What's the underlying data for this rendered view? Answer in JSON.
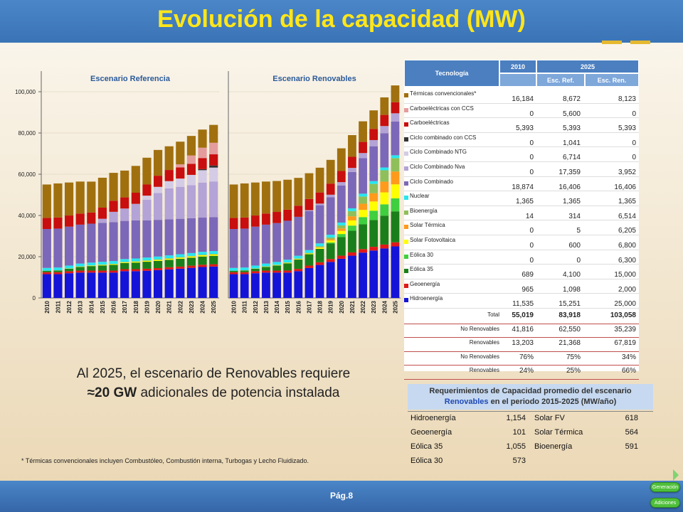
{
  "title": "Evolución de la capacidad (MW)",
  "footer": {
    "page": "Pág.8",
    "nav_top": "Generación",
    "nav_bottom": "Adiciones"
  },
  "message": {
    "line1": "Al 2025, el escenario de Renovables requiere",
    "line2_bold": "≈20 GW",
    "line2_rest": " adicionales de potencia instalada"
  },
  "footnote": "*  Térmicas convencionales incluyen Combustóleo, Combustión interna, Turbogas y Lecho Fluidizado.",
  "colors": {
    "Hidroenergía": "#1414d8",
    "Geoenergía": "#e01818",
    "Eólica 35": "#1a7f1a",
    "Eólica 30": "#3fcf3f",
    "Solar Fotovoltaica": "#ffff00",
    "Solar Térmica": "#ff9a1a",
    "Bioenergía": "#8fbf5a",
    "Nuclear": "#28e6f0",
    "Ciclo Combinado": "#7c68b8",
    "Ciclo Combinado Nva": "#b3a3d6",
    "Ciclo Combinado NTG": "#d4cce6",
    "Ciclo combinado con CCS": "#333333",
    "Carboeléctricas": "#c80e0e",
    "Carboeléctricas con CCS": "#e59c9c",
    "Térmicas convencionales*": "#a0700f"
  },
  "chart_data": [
    {
      "type": "bar",
      "stacked": true,
      "title": "Escenario Referencia",
      "categories": [
        "2010",
        "2011",
        "2012",
        "2013",
        "2014",
        "2015",
        "2016",
        "2017",
        "2018",
        "2019",
        "2020",
        "2021",
        "2022",
        "2023",
        "2024",
        "2025"
      ],
      "yticks": [
        "0",
        "20,000",
        "40,000",
        "60,000",
        "80,000",
        "100,000"
      ],
      "ylim": [
        0,
        110000
      ],
      "series": [
        {
          "name": "Hidroenergía",
          "values": [
            11535,
            11535,
            12000,
            12300,
            12300,
            12300,
            12300,
            13000,
            13000,
            13200,
            13500,
            13900,
            14200,
            14600,
            15000,
            15251
          ]
        },
        {
          "name": "Geoenergía",
          "values": [
            965,
            965,
            965,
            965,
            965,
            965,
            965,
            965,
            965,
            965,
            965,
            1000,
            1000,
            1050,
            1098,
            1098
          ]
        },
        {
          "name": "Eólica 35",
          "values": [
            689,
            800,
            1200,
            1800,
            2200,
            2500,
            2800,
            3000,
            3200,
            3400,
            3500,
            3600,
            3800,
            3900,
            4000,
            4100
          ]
        },
        {
          "name": "Eólica 30",
          "values": [
            0,
            0,
            0,
            0,
            0,
            0,
            0,
            0,
            0,
            0,
            0,
            0,
            0,
            0,
            0,
            0
          ]
        },
        {
          "name": "Solar Fotovoltaica",
          "values": [
            0,
            50,
            100,
            150,
            200,
            250,
            300,
            350,
            400,
            450,
            500,
            520,
            550,
            570,
            590,
            600
          ]
        },
        {
          "name": "Solar Térmica",
          "values": [
            0,
            0,
            0,
            0,
            0,
            0,
            0,
            0,
            0,
            0,
            0,
            0,
            0,
            5,
            5,
            5
          ]
        },
        {
          "name": "Bioenergía",
          "values": [
            14,
            50,
            80,
            100,
            120,
            150,
            170,
            190,
            210,
            230,
            250,
            270,
            280,
            290,
            300,
            314
          ]
        },
        {
          "name": "Nuclear",
          "values": [
            1365,
            1365,
            1365,
            1365,
            1365,
            1365,
            1365,
            1365,
            1365,
            1365,
            1365,
            1365,
            1365,
            1365,
            1365,
            1365
          ]
        },
        {
          "name": "Ciclo Combinado",
          "values": [
            18874,
            18874,
            18874,
            18874,
            18874,
            18874,
            18874,
            18500,
            18500,
            18000,
            17800,
            17500,
            17200,
            16900,
            16600,
            16406
          ]
        },
        {
          "name": "Ciclo Combinado Nva",
          "values": [
            0,
            0,
            0,
            0,
            0,
            2000,
            5000,
            6000,
            8000,
            10000,
            13000,
            15000,
            15500,
            16000,
            17000,
            17359
          ]
        },
        {
          "name": "Ciclo Combinado NTG",
          "values": [
            0,
            0,
            0,
            0,
            0,
            0,
            0,
            0,
            0,
            2000,
            3000,
            3500,
            4000,
            5000,
            6000,
            6714
          ]
        },
        {
          "name": "Ciclo combinado con CCS",
          "values": [
            0,
            0,
            0,
            0,
            0,
            0,
            0,
            0,
            0,
            0,
            0,
            0,
            0,
            0,
            500,
            1041
          ]
        },
        {
          "name": "Carboeléctricas",
          "values": [
            5393,
            5393,
            5393,
            5393,
            5393,
            5393,
            5393,
            5393,
            5393,
            5393,
            5393,
            5393,
            5393,
            5393,
            5393,
            5393
          ]
        },
        {
          "name": "Carboeléctricas con CCS",
          "values": [
            0,
            0,
            0,
            0,
            0,
            0,
            0,
            0,
            0,
            0,
            0,
            0,
            1500,
            4000,
            5000,
            5600
          ]
        },
        {
          "name": "Térmicas convencionales*",
          "values": [
            16184,
            16500,
            16000,
            15500,
            15000,
            14500,
            13500,
            13000,
            13000,
            13000,
            12500,
            11500,
            11000,
            9500,
            8800,
            8672
          ]
        }
      ]
    },
    {
      "type": "bar",
      "stacked": true,
      "title": "Escenario Renovables",
      "categories": [
        "2010",
        "2011",
        "2012",
        "2013",
        "2014",
        "2015",
        "2016",
        "2017",
        "2018",
        "2019",
        "2020",
        "2021",
        "2022",
        "2023",
        "2024",
        "2025"
      ],
      "yticks": [
        "0",
        "20,000",
        "40,000",
        "60,000",
        "80,000",
        "100,000"
      ],
      "ylim": [
        0,
        110000
      ],
      "series": [
        {
          "name": "Hidroenergía",
          "values": [
            11535,
            11535,
            12000,
            12300,
            12300,
            12300,
            13000,
            14500,
            16000,
            17500,
            19000,
            20500,
            22000,
            23000,
            24000,
            25000
          ]
        },
        {
          "name": "Geoenergía",
          "values": [
            965,
            965,
            965,
            965,
            965,
            1000,
            1100,
            1200,
            1300,
            1400,
            1500,
            1600,
            1700,
            1800,
            1900,
            2000
          ]
        },
        {
          "name": "Eólica 35",
          "values": [
            689,
            800,
            1200,
            1800,
            2500,
            3500,
            4500,
            5500,
            6500,
            7500,
            9000,
            10500,
            12000,
            13000,
            14000,
            15000
          ]
        },
        {
          "name": "Eólica 30",
          "values": [
            0,
            0,
            0,
            0,
            0,
            0,
            0,
            0,
            0,
            500,
            1500,
            2500,
            3500,
            4500,
            5500,
            6300
          ]
        },
        {
          "name": "Solar Fotovoltaica",
          "values": [
            0,
            50,
            100,
            150,
            200,
            250,
            300,
            350,
            600,
            1000,
            1500,
            2500,
            3500,
            4500,
            5800,
            6800
          ]
        },
        {
          "name": "Solar Térmica",
          "values": [
            0,
            0,
            0,
            0,
            0,
            0,
            0,
            0,
            200,
            600,
            1200,
            2000,
            3000,
            4000,
            5200,
            6205
          ]
        },
        {
          "name": "Bioenergía",
          "values": [
            14,
            50,
            80,
            100,
            120,
            150,
            200,
            300,
            500,
            800,
            1500,
            2500,
            3500,
            4500,
            5500,
            6514
          ]
        },
        {
          "name": "Nuclear",
          "values": [
            1365,
            1365,
            1365,
            1365,
            1365,
            1365,
            1365,
            1365,
            1365,
            1365,
            1365,
            1365,
            1365,
            1365,
            1365,
            1365
          ]
        },
        {
          "name": "Ciclo Combinado",
          "values": [
            18874,
            18874,
            18874,
            18874,
            18874,
            18874,
            18874,
            18874,
            18500,
            18200,
            18000,
            17600,
            17200,
            16900,
            16600,
            16406
          ]
        },
        {
          "name": "Ciclo Combinado Nva",
          "values": [
            0,
            0,
            0,
            0,
            0,
            0,
            0,
            500,
            800,
            1200,
            1600,
            2000,
            2500,
            3000,
            3500,
            3952
          ]
        },
        {
          "name": "Ciclo Combinado NTG",
          "values": [
            0,
            0,
            0,
            0,
            0,
            0,
            0,
            0,
            0,
            0,
            0,
            0,
            0,
            0,
            0,
            0
          ]
        },
        {
          "name": "Ciclo combinado con CCS",
          "values": [
            0,
            0,
            0,
            0,
            0,
            0,
            0,
            0,
            0,
            0,
            0,
            0,
            0,
            0,
            0,
            0
          ]
        },
        {
          "name": "Carboeléctricas",
          "values": [
            5393,
            5393,
            5393,
            5393,
            5393,
            5393,
            5393,
            5393,
            5393,
            5393,
            5393,
            5393,
            5393,
            5393,
            5393,
            5393
          ]
        },
        {
          "name": "Carboeléctricas con CCS",
          "values": [
            0,
            0,
            0,
            0,
            0,
            0,
            0,
            0,
            0,
            0,
            0,
            0,
            0,
            0,
            0,
            0
          ]
        },
        {
          "name": "Térmicas convencionales*",
          "values": [
            16184,
            16500,
            16000,
            15500,
            15000,
            14500,
            13500,
            12500,
            12000,
            11500,
            11000,
            10500,
            10000,
            9000,
            8500,
            8123
          ]
        }
      ]
    }
  ],
  "table": {
    "header_tech": "Tecnología",
    "header_2010": "2010",
    "header_2025": "2025",
    "header_ref": "Esc. Ref.",
    "header_ren": "Esc. Ren.",
    "rows": [
      {
        "name": "Térmicas convencionales*",
        "v2010": "16,184",
        "ref": "8,672",
        "ren": "8,123"
      },
      {
        "name": "Carboeléctricas con CCS",
        "v2010": "0",
        "ref": "5,600",
        "ren": "0"
      },
      {
        "name": "Carboeléctricas",
        "v2010": "5,393",
        "ref": "5,393",
        "ren": "5,393"
      },
      {
        "name": "Ciclo combinado con CCS",
        "v2010": "0",
        "ref": "1,041",
        "ren": "0"
      },
      {
        "name": "Ciclo Combinado NTG",
        "v2010": "0",
        "ref": "6,714",
        "ren": "0"
      },
      {
        "name": "Ciclo Combinado Nva",
        "v2010": "0",
        "ref": "17,359",
        "ren": "3,952"
      },
      {
        "name": "Ciclo Combinado",
        "v2010": "18,874",
        "ref": "16,406",
        "ren": "16,406"
      },
      {
        "name": "Nuclear",
        "v2010": "1,365",
        "ref": "1,365",
        "ren": "1,365"
      },
      {
        "name": "Bioenergía",
        "v2010": "14",
        "ref": "314",
        "ren": "6,514"
      },
      {
        "name": "Solar Térmica",
        "v2010": "0",
        "ref": "5",
        "ren": "6,205"
      },
      {
        "name": "Solar Fotovoltaica",
        "v2010": "0",
        "ref": "600",
        "ren": "6,800"
      },
      {
        "name": "Eólica 30",
        "v2010": "0",
        "ref": "0",
        "ren": "6,300"
      },
      {
        "name": "Eólica 35",
        "v2010": "689",
        "ref": "4,100",
        "ren": "15,000"
      },
      {
        "name": "Geoenergía",
        "v2010": "965",
        "ref": "1,098",
        "ren": "2,000"
      },
      {
        "name": "Hidroenergía",
        "v2010": "11,535",
        "ref": "15,251",
        "ren": "25,000"
      }
    ],
    "totals": [
      {
        "label": "Total",
        "v2010": "55,019",
        "ref": "83,918",
        "ren": "103,058",
        "bold": true
      },
      {
        "label": "No Renovables",
        "v2010": "41,816",
        "ref": "62,550",
        "ren": "35,239"
      },
      {
        "label": "Renovables",
        "v2010": "13,203",
        "ref": "21,368",
        "ren": "67,819"
      },
      {
        "label": "No Renovables",
        "v2010": "76%",
        "ref": "75%",
        "ren": "34%"
      },
      {
        "label": "Renovables",
        "v2010": "24%",
        "ref": "25%",
        "ren": "66%"
      }
    ]
  },
  "requirements": {
    "title_line1": "Requerimientos de Capacidad promedio del escenario",
    "title_blue": "Renovables",
    "title_line2_rest": " en el  periodo 2015-2025  (MW/año)",
    "left": [
      {
        "name": "Hidroenergía",
        "value": "1,154"
      },
      {
        "name": "Geoenergía",
        "value": "101"
      },
      {
        "name": "Eólica 35",
        "value": "1,055"
      },
      {
        "name": "Eólica 30",
        "value": "573"
      }
    ],
    "right": [
      {
        "name": "Solar FV",
        "value": "618"
      },
      {
        "name": "Solar Térmica",
        "value": "564"
      },
      {
        "name": "Bioenergía",
        "value": "591"
      }
    ]
  }
}
